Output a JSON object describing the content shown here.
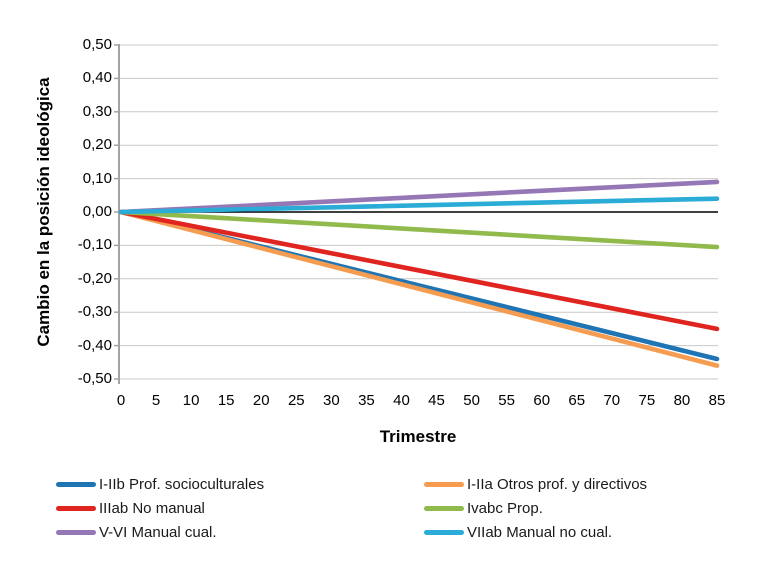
{
  "chart_data": {
    "type": "line",
    "title": "",
    "xlabel": "Trimestre",
    "ylabel": "Cambio en la posición ideológica",
    "xlim": [
      0,
      85
    ],
    "ylim": [
      -0.5,
      0.5
    ],
    "x_tick_step": 5,
    "y_tick_step": 0.1,
    "decimal_separator": ",",
    "grid": "horizontal",
    "legend_position": "bottom-two-columns",
    "x_tick_labels": [
      "0",
      "5",
      "10",
      "15",
      "20",
      "25",
      "30",
      "35",
      "40",
      "45",
      "50",
      "55",
      "60",
      "65",
      "70",
      "75",
      "80",
      "85"
    ],
    "y_tick_labels": [
      "0,50",
      "0,40",
      "0,30",
      "0,20",
      "0,10",
      "0,00",
      "-0,10",
      "-0,20",
      "-0,30",
      "-0,40",
      "-0,50"
    ],
    "y_tick_values": [
      0.5,
      0.4,
      0.3,
      0.2,
      0.1,
      0.0,
      -0.1,
      -0.2,
      -0.3,
      -0.4,
      -0.5
    ],
    "x_tick_values": [
      0,
      5,
      10,
      15,
      20,
      25,
      30,
      35,
      40,
      45,
      50,
      55,
      60,
      65,
      70,
      75,
      80,
      85
    ],
    "series": [
      {
        "name": "I-IIb Prof. socioculturales",
        "color": "#1F74B4",
        "points": [
          [
            0,
            0.0
          ],
          [
            85,
            -0.44
          ]
        ]
      },
      {
        "name": "I-IIa Otros prof. y directivos",
        "color": "#F59C50",
        "points": [
          [
            0,
            0.0
          ],
          [
            85,
            -0.46
          ]
        ]
      },
      {
        "name": "IIIab No manual",
        "color": "#E02420",
        "points": [
          [
            0,
            0.0
          ],
          [
            85,
            -0.35
          ]
        ]
      },
      {
        "name": "Ivabc Prop.",
        "color": "#91BA4D",
        "points": [
          [
            0,
            0.0
          ],
          [
            85,
            -0.105
          ]
        ]
      },
      {
        "name": "V-VI Manual cual.",
        "color": "#9577B5",
        "points": [
          [
            0,
            0.0
          ],
          [
            85,
            0.09
          ]
        ]
      },
      {
        "name": "VIIab Manual no cual.",
        "color": "#2AACD7",
        "points": [
          [
            0,
            0.0
          ],
          [
            85,
            0.04
          ]
        ]
      }
    ],
    "legend_columns": [
      [
        0,
        2,
        4
      ],
      [
        1,
        3,
        5
      ]
    ],
    "colors": {
      "background": "#ffffff",
      "gridline": "#C9C9C9",
      "axis_line": "#A3A3A3",
      "zero_line": "#000000",
      "tick_text": "#000000"
    }
  }
}
